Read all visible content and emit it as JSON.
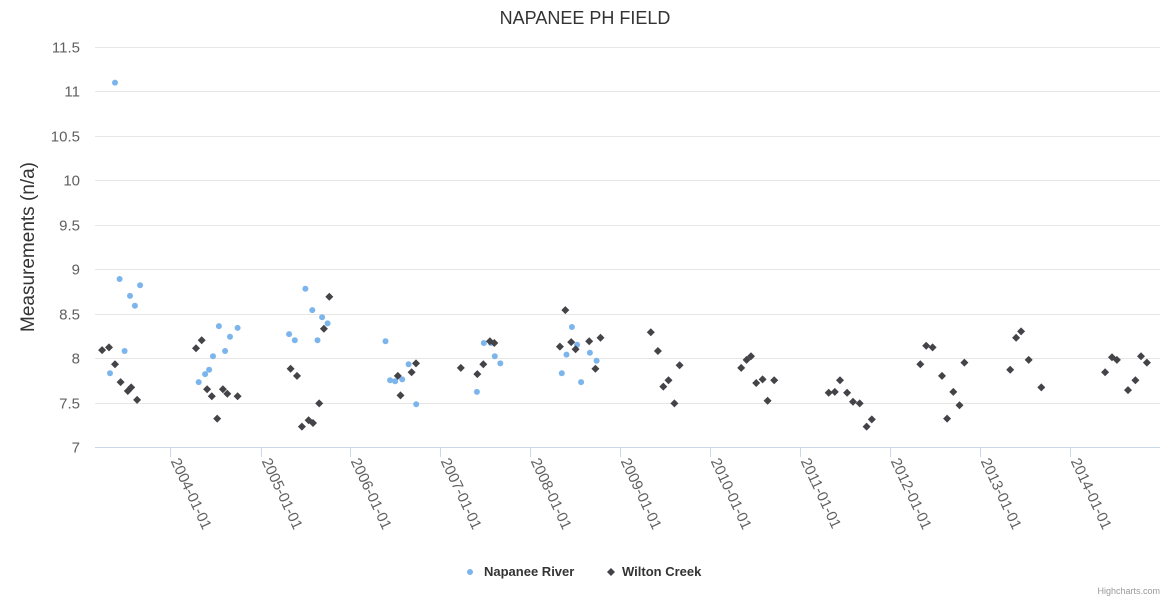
{
  "chart_data": {
    "type": "scatter",
    "title": "NAPANEE PH FIELD",
    "xlabel": "",
    "ylabel": "Measurements (n/a)",
    "xlim": [
      "2003-03-01",
      "2014-12-31"
    ],
    "ylim": [
      7,
      11.5
    ],
    "y_ticks": [
      7,
      7.5,
      8,
      8.5,
      9,
      9.5,
      10,
      10.5,
      11,
      11.5
    ],
    "x_ticks": [
      "2004-01-01",
      "2005-01-01",
      "2006-01-01",
      "2007-01-01",
      "2008-01-01",
      "2009-01-01",
      "2010-01-01",
      "2011-01-01",
      "2012-01-01",
      "2013-01-01",
      "2014-01-01"
    ],
    "grid": "horizontal",
    "legend": "bottom-center",
    "series": [
      {
        "name": "Napanee River",
        "marker": "circle",
        "color": "#7cb5ec",
        "points": [
          [
            "2003-05-01",
            7.83
          ],
          [
            "2003-05-21",
            11.1
          ],
          [
            "2003-06-09",
            8.89
          ],
          [
            "2003-06-29",
            8.08
          ],
          [
            "2003-07-21",
            8.7
          ],
          [
            "2003-08-10",
            8.59
          ],
          [
            "2003-08-31",
            8.82
          ],
          [
            "2004-04-25",
            7.73
          ],
          [
            "2004-05-21",
            7.82
          ],
          [
            "2004-06-06",
            7.87
          ],
          [
            "2004-06-22",
            8.02
          ],
          [
            "2004-07-16",
            8.36
          ],
          [
            "2004-08-10",
            8.08
          ],
          [
            "2004-08-30",
            8.24
          ],
          [
            "2004-09-30",
            8.34
          ],
          [
            "2005-04-27",
            8.27
          ],
          [
            "2005-05-20",
            8.2
          ],
          [
            "2005-07-02",
            8.78
          ],
          [
            "2005-07-30",
            8.54
          ],
          [
            "2005-08-20",
            8.2
          ],
          [
            "2005-09-08",
            8.46
          ],
          [
            "2005-09-30",
            8.39
          ],
          [
            "2006-05-23",
            8.19
          ],
          [
            "2006-06-11",
            7.75
          ],
          [
            "2006-07-01",
            7.74
          ],
          [
            "2006-07-30",
            7.76
          ],
          [
            "2006-08-25",
            7.93
          ],
          [
            "2006-09-25",
            7.48
          ],
          [
            "2007-05-29",
            7.62
          ],
          [
            "2007-06-26",
            8.17
          ],
          [
            "2007-07-25",
            8.17
          ],
          [
            "2007-08-10",
            8.02
          ],
          [
            "2007-09-01",
            7.94
          ],
          [
            "2008-05-08",
            7.83
          ],
          [
            "2008-05-27",
            8.04
          ],
          [
            "2008-06-18",
            8.35
          ],
          [
            "2008-07-09",
            8.15
          ],
          [
            "2008-07-25",
            7.73
          ],
          [
            "2008-08-30",
            8.06
          ],
          [
            "2008-09-26",
            7.97
          ]
        ]
      },
      {
        "name": "Wilton Creek",
        "marker": "diamond",
        "color": "#434348",
        "points": [
          [
            "2003-03-30",
            8.09
          ],
          [
            "2003-04-27",
            8.12
          ],
          [
            "2003-05-21",
            7.93
          ],
          [
            "2003-06-13",
            7.73
          ],
          [
            "2003-07-12",
            7.63
          ],
          [
            "2003-07-26",
            7.67
          ],
          [
            "2003-08-19",
            7.53
          ],
          [
            "2004-04-14",
            8.11
          ],
          [
            "2004-05-07",
            8.2
          ],
          [
            "2004-05-29",
            7.65
          ],
          [
            "2004-06-17",
            7.57
          ],
          [
            "2004-07-09",
            7.32
          ],
          [
            "2004-08-01",
            7.65
          ],
          [
            "2004-08-19",
            7.6
          ],
          [
            "2004-09-30",
            7.57
          ],
          [
            "2005-05-03",
            7.88
          ],
          [
            "2005-05-29",
            7.8
          ],
          [
            "2005-06-18",
            7.23
          ],
          [
            "2005-07-15",
            7.3
          ],
          [
            "2005-08-02",
            7.27
          ],
          [
            "2005-08-27",
            7.49
          ],
          [
            "2005-09-15",
            8.33
          ],
          [
            "2005-10-07",
            8.69
          ],
          [
            "2006-07-12",
            7.8
          ],
          [
            "2006-07-23",
            7.58
          ],
          [
            "2006-09-06",
            7.84
          ],
          [
            "2006-09-24",
            7.94
          ],
          [
            "2007-03-25",
            7.89
          ],
          [
            "2007-05-31",
            7.82
          ],
          [
            "2007-06-24",
            7.93
          ],
          [
            "2007-07-21",
            8.19
          ],
          [
            "2007-08-08",
            8.17
          ],
          [
            "2008-04-30",
            8.13
          ],
          [
            "2008-05-22",
            8.54
          ],
          [
            "2008-06-15",
            8.18
          ],
          [
            "2008-07-03",
            8.1
          ],
          [
            "2008-08-27",
            8.19
          ],
          [
            "2008-09-21",
            7.88
          ],
          [
            "2008-10-12",
            8.23
          ],
          [
            "2009-05-04",
            8.29
          ],
          [
            "2009-06-02",
            8.08
          ],
          [
            "2009-06-24",
            7.68
          ],
          [
            "2009-07-15",
            7.75
          ],
          [
            "2009-08-08",
            7.49
          ],
          [
            "2009-08-29",
            7.92
          ],
          [
            "2010-05-06",
            7.89
          ],
          [
            "2010-05-28",
            7.98
          ],
          [
            "2010-06-15",
            8.02
          ],
          [
            "2010-07-06",
            7.72
          ],
          [
            "2010-08-01",
            7.76
          ],
          [
            "2010-08-21",
            7.52
          ],
          [
            "2010-09-17",
            7.75
          ],
          [
            "2011-04-26",
            7.61
          ],
          [
            "2011-05-21",
            7.62
          ],
          [
            "2011-06-11",
            7.75
          ],
          [
            "2011-07-10",
            7.61
          ],
          [
            "2011-08-03",
            7.51
          ],
          [
            "2011-08-30",
            7.49
          ],
          [
            "2011-09-27",
            7.23
          ],
          [
            "2011-10-18",
            7.31
          ],
          [
            "2012-05-02",
            7.93
          ],
          [
            "2012-05-26",
            8.14
          ],
          [
            "2012-06-21",
            8.12
          ],
          [
            "2012-07-29",
            7.8
          ],
          [
            "2012-08-19",
            7.32
          ],
          [
            "2012-09-13",
            7.62
          ],
          [
            "2012-10-08",
            7.47
          ],
          [
            "2012-10-28",
            7.95
          ],
          [
            "2013-05-02",
            7.87
          ],
          [
            "2013-05-26",
            8.23
          ],
          [
            "2013-06-15",
            8.3
          ],
          [
            "2013-07-16",
            7.98
          ],
          [
            "2013-09-05",
            7.67
          ],
          [
            "2014-05-22",
            7.84
          ],
          [
            "2014-06-19",
            8.01
          ],
          [
            "2014-07-09",
            7.98
          ],
          [
            "2014-08-23",
            7.64
          ],
          [
            "2014-09-22",
            7.75
          ],
          [
            "2014-10-15",
            8.02
          ],
          [
            "2014-11-08",
            7.95
          ]
        ]
      }
    ]
  },
  "credits": "Highcharts.com"
}
